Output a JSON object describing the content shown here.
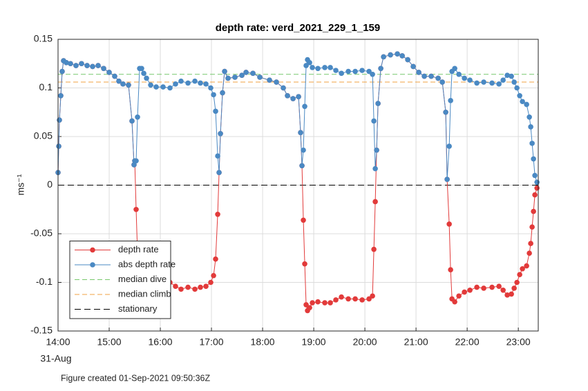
{
  "chart_data": {
    "type": "line",
    "title": "depth rate: verd_2021_229_1_159",
    "ylabel": "ms⁻¹",
    "xlabel": "31-Aug",
    "note": "Figure created 01-Sep-2021 09:50:36Z",
    "x": [
      14.0,
      14.014,
      14.027,
      14.054,
      14.081,
      14.108,
      14.162,
      14.243,
      14.351,
      14.459,
      14.568,
      14.676,
      14.784,
      14.892,
      15.0,
      15.108,
      15.189,
      15.27,
      15.378,
      15.446,
      15.486,
      15.5,
      15.527,
      15.554,
      15.595,
      15.635,
      15.676,
      15.73,
      15.811,
      15.919,
      16.054,
      16.189,
      16.297,
      16.405,
      16.541,
      16.676,
      16.784,
      16.892,
      16.986,
      17.041,
      17.081,
      17.122,
      17.149,
      17.176,
      17.216,
      17.257,
      17.324,
      17.459,
      17.595,
      17.676,
      17.811,
      17.946,
      18.135,
      18.27,
      18.405,
      18.486,
      18.595,
      18.703,
      18.743,
      18.77,
      18.797,
      18.824,
      18.851,
      18.878,
      18.919,
      18.973,
      19.081,
      19.216,
      19.324,
      19.432,
      19.541,
      19.676,
      19.811,
      19.946,
      20.081,
      20.149,
      20.176,
      20.203,
      20.23,
      20.257,
      20.311,
      20.365,
      20.5,
      20.635,
      20.73,
      20.838,
      20.946,
      21.054,
      21.162,
      21.297,
      21.432,
      21.514,
      21.581,
      21.608,
      21.649,
      21.676,
      21.703,
      21.757,
      21.838,
      21.946,
      22.054,
      22.189,
      22.324,
      22.486,
      22.622,
      22.703,
      22.784,
      22.865,
      22.919,
      22.973,
      23.027,
      23.081,
      23.162,
      23.216,
      23.243,
      23.27,
      23.297,
      23.324,
      23.365
    ],
    "series": [
      {
        "name": "depth rate",
        "color": "#e23a3a",
        "values": [
          0.013,
          0.04,
          0.067,
          0.092,
          0.117,
          0.128,
          0.126,
          0.125,
          0.123,
          0.125,
          0.123,
          0.122,
          0.123,
          0.12,
          0.116,
          0.112,
          0.107,
          0.104,
          0.103,
          0.066,
          0.021,
          0.025,
          -0.025,
          -0.07,
          -0.12,
          -0.12,
          -0.115,
          -0.11,
          -0.103,
          -0.101,
          -0.101,
          -0.1,
          -0.104,
          -0.107,
          -0.105,
          -0.107,
          -0.105,
          -0.104,
          -0.1,
          -0.093,
          -0.076,
          -0.03,
          0.013,
          0.053,
          0.095,
          0.117,
          0.11,
          0.111,
          0.113,
          0.116,
          0.115,
          0.111,
          0.108,
          0.106,
          0.1,
          0.092,
          0.089,
          0.091,
          0.054,
          0.02,
          -0.036,
          -0.081,
          -0.123,
          -0.129,
          -0.126,
          -0.121,
          -0.12,
          -0.121,
          -0.121,
          -0.118,
          -0.115,
          -0.117,
          -0.117,
          -0.118,
          -0.117,
          -0.114,
          -0.066,
          -0.017,
          0.036,
          0.084,
          0.12,
          0.132,
          0.134,
          0.135,
          0.133,
          0.129,
          0.122,
          0.116,
          0.112,
          0.112,
          0.11,
          0.106,
          0.075,
          0.006,
          -0.04,
          -0.087,
          -0.117,
          -0.12,
          -0.114,
          -0.11,
          -0.108,
          -0.105,
          -0.106,
          -0.105,
          -0.104,
          -0.108,
          -0.113,
          -0.112,
          -0.106,
          -0.1,
          -0.092,
          -0.086,
          -0.083,
          -0.07,
          -0.06,
          -0.043,
          -0.027,
          -0.01,
          -0.003
        ]
      },
      {
        "name": "abs depth rate",
        "color": "#4a89c3",
        "values": [
          0.013,
          0.04,
          0.067,
          0.092,
          0.117,
          0.128,
          0.126,
          0.125,
          0.123,
          0.125,
          0.123,
          0.122,
          0.123,
          0.12,
          0.116,
          0.112,
          0.107,
          0.104,
          0.103,
          0.066,
          0.021,
          0.025,
          0.025,
          0.07,
          0.12,
          0.12,
          0.115,
          0.11,
          0.103,
          0.101,
          0.101,
          0.1,
          0.104,
          0.107,
          0.105,
          0.107,
          0.105,
          0.104,
          0.1,
          0.093,
          0.076,
          0.03,
          0.013,
          0.053,
          0.095,
          0.117,
          0.11,
          0.111,
          0.113,
          0.116,
          0.115,
          0.111,
          0.108,
          0.106,
          0.1,
          0.092,
          0.089,
          0.091,
          0.054,
          0.02,
          0.036,
          0.081,
          0.123,
          0.129,
          0.126,
          0.121,
          0.12,
          0.121,
          0.121,
          0.118,
          0.115,
          0.117,
          0.117,
          0.118,
          0.117,
          0.114,
          0.066,
          0.017,
          0.036,
          0.084,
          0.12,
          0.132,
          0.134,
          0.135,
          0.133,
          0.129,
          0.122,
          0.116,
          0.112,
          0.112,
          0.11,
          0.106,
          0.075,
          0.006,
          0.04,
          0.087,
          0.117,
          0.12,
          0.114,
          0.11,
          0.108,
          0.105,
          0.106,
          0.105,
          0.104,
          0.108,
          0.113,
          0.112,
          0.106,
          0.1,
          0.092,
          0.086,
          0.083,
          0.07,
          0.06,
          0.043,
          0.027,
          0.01,
          0.003
        ]
      }
    ],
    "reference_lines": [
      {
        "name": "median dive",
        "value": 0.114,
        "color": "#77c86b"
      },
      {
        "name": "median climb",
        "value": 0.106,
        "color": "#f0a040"
      },
      {
        "name": "stationary",
        "value": 0,
        "color": "#000000"
      }
    ],
    "xlim": [
      14,
      23.39
    ],
    "xticks": [
      {
        "value": 14,
        "label": "14:00"
      },
      {
        "value": 15,
        "label": "15:00"
      },
      {
        "value": 16,
        "label": "16:00"
      },
      {
        "value": 17,
        "label": "17:00"
      },
      {
        "value": 18,
        "label": "18:00"
      },
      {
        "value": 19,
        "label": "19:00"
      },
      {
        "value": 20,
        "label": "20:00"
      },
      {
        "value": 21,
        "label": "21:00"
      },
      {
        "value": 22,
        "label": "22:00"
      },
      {
        "value": 23,
        "label": "23:00"
      }
    ],
    "ylim": [
      -0.15,
      0.15
    ],
    "yticks": [
      -0.15,
      -0.1,
      -0.05,
      0,
      0.05,
      0.1,
      0.15
    ],
    "grid": true,
    "legend": "lower left"
  }
}
